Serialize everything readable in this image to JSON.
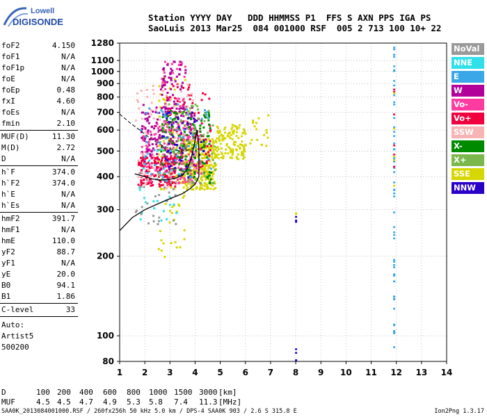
{
  "logo": {
    "line1": "Lowell",
    "line2": "DIGISONDE"
  },
  "header": {
    "line1": "Station YYYY DAY   DDD HHMMSS P1  FFS S AXN PPS IGA PS",
    "line2": "SaoLuis 2013 Mar25  084 001000 RSF  005 2 713 100 10+ 22"
  },
  "params": [
    {
      "name": "foF2",
      "value": "4.150"
    },
    {
      "name": "foF1",
      "value": "N/A"
    },
    {
      "name": "foF1p",
      "value": "N/A"
    },
    {
      "name": "foE",
      "value": "N/A"
    },
    {
      "name": "foEp",
      "value": "0.48"
    },
    {
      "name": "fxI",
      "value": "4.60"
    },
    {
      "name": "foEs",
      "value": "N/A"
    },
    {
      "name": "fmin",
      "value": "2.10"
    },
    {
      "sep": true
    },
    {
      "name": "MUF(D)",
      "value": "11.30"
    },
    {
      "name": "M(D)",
      "value": "2.72"
    },
    {
      "name": "D",
      "value": "N/A"
    },
    {
      "sep": true
    },
    {
      "name": "h`F",
      "value": "374.0"
    },
    {
      "name": "h`F2",
      "value": "374.0"
    },
    {
      "name": "h`E",
      "value": "N/A"
    },
    {
      "name": "h`Es",
      "value": "N/A"
    },
    {
      "sep": true
    },
    {
      "name": "hmF2",
      "value": "391.7"
    },
    {
      "name": "hmF1",
      "value": "N/A"
    },
    {
      "name": "hmE",
      "value": "110.0"
    },
    {
      "name": "yF2",
      "value": "88.7"
    },
    {
      "name": "yF1",
      "value": "N/A"
    },
    {
      "name": "yE",
      "value": "20.0"
    },
    {
      "name": "B0",
      "value": "94.1"
    },
    {
      "name": "B1",
      "value": "1.86"
    },
    {
      "sep": true
    },
    {
      "name": "C-level",
      "value": "33"
    },
    {
      "sep": true
    }
  ],
  "auto": [
    "Auto:",
    "Artist5",
    "500200"
  ],
  "legend": [
    {
      "label": "NoVal",
      "color": "#9a9a9a"
    },
    {
      "label": "NNE",
      "color": "#2fe0ea"
    },
    {
      "label": "E",
      "color": "#3aa8e8"
    },
    {
      "label": "W",
      "color": "#b2009a"
    },
    {
      "label": "Vo-",
      "color": "#ff3aa0"
    },
    {
      "label": "Vo+",
      "color": "#f0003c"
    },
    {
      "label": "SSW",
      "color": "#f8b4b4"
    },
    {
      "label": "X-",
      "color": "#008a00"
    },
    {
      "label": "X+",
      "color": "#7ab84c"
    },
    {
      "label": "SSE",
      "color": "#d6d600"
    },
    {
      "label": "NNW",
      "color": "#2a00c8"
    }
  ],
  "muf_table": {
    "d_label": "D",
    "d_values": [
      "100",
      "200",
      "400",
      "600",
      "800",
      "1000",
      "1500",
      "3000"
    ],
    "d_unit": "[km]",
    "muf_label": "MUF",
    "muf_values": [
      "4.5",
      "4.5",
      "4.7",
      "4.9",
      "5.3",
      "5.8",
      "7.4",
      "11.3"
    ],
    "muf_unit": "[MHz]"
  },
  "footer": {
    "left": "SAA0K_2013084001000.RSF / 260fx256h 50 kHz 5.0 km / DPS-4 SAA0K 903 / 2.6 S 315.8 E",
    "right": "Ion2Png 1.3.17"
  },
  "chart_data": {
    "type": "scatter",
    "xlabel": "",
    "ylabel": "",
    "xlim": [
      1,
      14
    ],
    "ylim": [
      80,
      1280
    ],
    "y_scale": "log",
    "x_ticks": [
      1,
      2,
      3,
      4,
      5,
      6,
      7,
      8,
      9,
      10,
      11,
      12,
      13,
      14
    ],
    "y_ticks": [
      80,
      100,
      200,
      300,
      400,
      500,
      600,
      700,
      800,
      900,
      1000,
      1100,
      1280
    ],
    "grid": "dotted",
    "legend_position": "right",
    "clusters": [
      {
        "color": "#d6d600",
        "x": [
          3.4,
          4.8
        ],
        "y": [
          360,
          560
        ],
        "n": 320
      },
      {
        "color": "#d6d600",
        "x": [
          4.8,
          6.0
        ],
        "y": [
          470,
          640
        ],
        "n": 120
      },
      {
        "color": "#d6d600",
        "x": [
          2.5,
          3.6
        ],
        "y": [
          200,
          1000
        ],
        "n": 90
      },
      {
        "color": "#d6d600",
        "x": [
          6.0,
          6.9
        ],
        "y": [
          520,
          700
        ],
        "n": 18
      },
      {
        "color": "#ff3aa0",
        "x": [
          1.8,
          4.2
        ],
        "y": [
          380,
          640
        ],
        "n": 220
      },
      {
        "color": "#ff3aa0",
        "x": [
          2.6,
          3.6
        ],
        "y": [
          600,
          1100
        ],
        "n": 60
      },
      {
        "color": "#b2009a",
        "x": [
          1.8,
          4.0
        ],
        "y": [
          420,
          760
        ],
        "n": 170
      },
      {
        "color": "#b2009a",
        "x": [
          2.6,
          3.6
        ],
        "y": [
          700,
          1100
        ],
        "n": 60
      },
      {
        "color": "#f0003c",
        "x": [
          1.7,
          3.2
        ],
        "y": [
          370,
          480
        ],
        "n": 130
      },
      {
        "color": "#f0003c",
        "x": [
          2.8,
          4.6
        ],
        "y": [
          400,
          900
        ],
        "n": 70
      },
      {
        "color": "#008a00",
        "x": [
          2.6,
          4.6
        ],
        "y": [
          380,
          720
        ],
        "n": 130
      },
      {
        "color": "#7ab84c",
        "x": [
          2.5,
          4.8
        ],
        "y": [
          380,
          760
        ],
        "n": 100
      },
      {
        "color": "#f8b4b4",
        "x": [
          1.6,
          4.0
        ],
        "y": [
          360,
          900
        ],
        "n": 80
      },
      {
        "color": "#2a00c8",
        "x": [
          2.6,
          4.4
        ],
        "y": [
          400,
          720
        ],
        "n": 50
      },
      {
        "color": "#3aa8e8",
        "x": [
          1.8,
          4.6
        ],
        "y": [
          380,
          760
        ],
        "n": 50
      },
      {
        "color": "#2fe0ea",
        "x": [
          1.6,
          3.4
        ],
        "y": [
          270,
          520
        ],
        "n": 30
      },
      {
        "color": "#9a9a9a",
        "x": [
          1.6,
          3.2
        ],
        "y": [
          260,
          420
        ],
        "n": 30
      }
    ],
    "column_points": [
      {
        "color": "#3aa8e8",
        "x": 11.9,
        "y": [
          90,
          1250
        ],
        "n": 55
      },
      {
        "color": "#f0003c",
        "x": 11.9,
        "y": [
          200,
          900
        ],
        "n": 6
      },
      {
        "color": "#d6d600",
        "x": 11.9,
        "y": [
          300,
          1200
        ],
        "n": 5
      },
      {
        "color": "#2a00c8",
        "x": 8.0,
        "y": [
          270,
          285
        ],
        "n": 3
      },
      {
        "color": "#2a00c8",
        "x": 8.0,
        "y": [
          80,
          95
        ],
        "n": 3
      },
      {
        "color": "#d6d600",
        "x": 8.0,
        "y": [
          285,
          300
        ],
        "n": 2
      }
    ],
    "profile_line": [
      [
        1.0,
        250
      ],
      [
        1.5,
        280
      ],
      [
        2.0,
        300
      ],
      [
        2.5,
        315
      ],
      [
        3.0,
        330
      ],
      [
        3.5,
        345
      ],
      [
        3.8,
        360
      ],
      [
        4.0,
        375
      ],
      [
        4.1,
        390
      ],
      [
        4.15,
        400
      ],
      [
        4.15,
        500
      ],
      [
        4.12,
        560
      ],
      [
        4.05,
        600
      ]
    ],
    "trace_line": [
      [
        1.6,
        410
      ],
      [
        2.0,
        400
      ],
      [
        2.3,
        392
      ],
      [
        2.6,
        388
      ],
      [
        2.9,
        390
      ],
      [
        3.2,
        394
      ],
      [
        3.5,
        405
      ],
      [
        3.7,
        430
      ],
      [
        3.85,
        470
      ],
      [
        3.95,
        520
      ],
      [
        4.05,
        580
      ],
      [
        4.1,
        600
      ]
    ],
    "extrapolation_dashed": [
      [
        1.0,
        690
      ],
      [
        1.4,
        640
      ],
      [
        1.8,
        600
      ],
      [
        2.2,
        560
      ],
      [
        2.6,
        530
      ],
      [
        3.0,
        510
      ],
      [
        3.4,
        500
      ],
      [
        3.8,
        505
      ],
      [
        4.0,
        520
      ]
    ]
  }
}
